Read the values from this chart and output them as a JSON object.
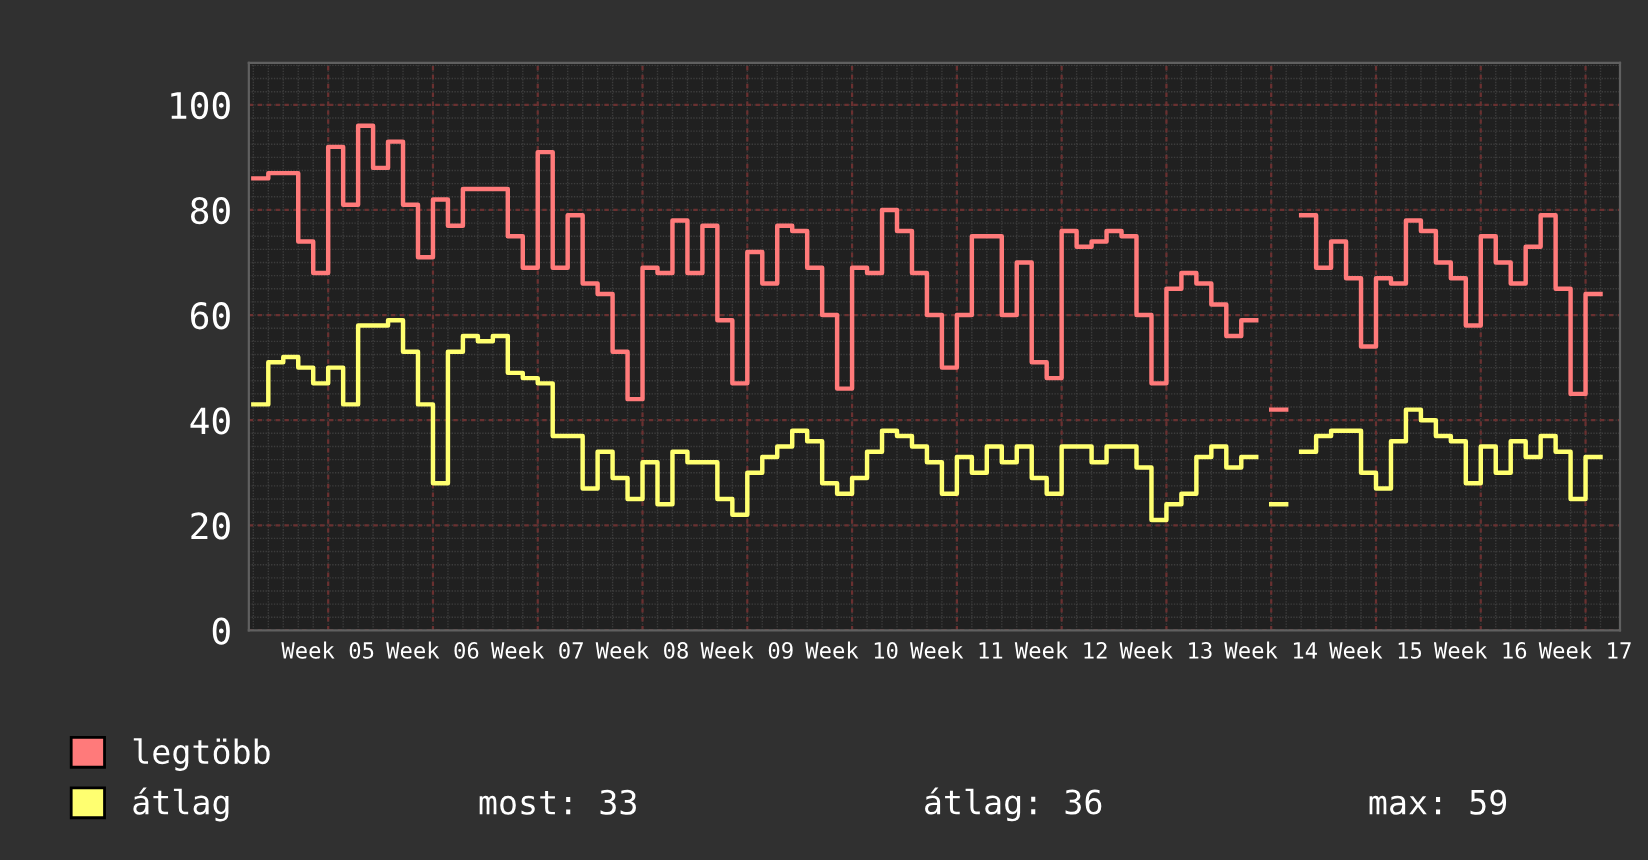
{
  "chart_data": {
    "type": "step",
    "categories": [
      null,
      null,
      null,
      null,
      null,
      "Week 05",
      null,
      null,
      null,
      null,
      null,
      null,
      "Week 06",
      null,
      null,
      null,
      null,
      null,
      null,
      "Week 07",
      null,
      null,
      null,
      null,
      null,
      null,
      "Week 08",
      null,
      null,
      null,
      null,
      null,
      null,
      "Week 09",
      null,
      null,
      null,
      null,
      null,
      null,
      "Week 10",
      null,
      null,
      null,
      null,
      null,
      null,
      "Week 11",
      null,
      null,
      null,
      null,
      null,
      null,
      "Week 12",
      null,
      null,
      null,
      null,
      null,
      null,
      "Week 13",
      null,
      null,
      null,
      null,
      null,
      null,
      "Week 14",
      null,
      null,
      null,
      null,
      null,
      null,
      "Week 15",
      null,
      null,
      null,
      null,
      null,
      null,
      "Week 16",
      null,
      null,
      null,
      null,
      null,
      null,
      "Week 17",
      null
    ],
    "series": [
      {
        "name": "legtöbb",
        "color": "#ff7a7a",
        "values": [
          86,
          87,
          87,
          74,
          68,
          92,
          81,
          96,
          88,
          93,
          81,
          71,
          82,
          77,
          84,
          84,
          84,
          75,
          69,
          91,
          69,
          79,
          66,
          64,
          53,
          44,
          69,
          68,
          78,
          68,
          77,
          59,
          47,
          72,
          66,
          77,
          76,
          69,
          60,
          46,
          69,
          68,
          80,
          76,
          68,
          60,
          50,
          60,
          75,
          75,
          60,
          70,
          51,
          48,
          76,
          73,
          74,
          76,
          75,
          60,
          47,
          65,
          68,
          66,
          62,
          56,
          59,
          null,
          42,
          null,
          79,
          69,
          74,
          67,
          54,
          67,
          66,
          78,
          76,
          70,
          67,
          58,
          75,
          70,
          66,
          73,
          79,
          65,
          45,
          64,
          64
        ]
      },
      {
        "name": "átlag",
        "color": "#ffff70",
        "values": [
          43,
          51,
          52,
          50,
          47,
          50,
          43,
          58,
          58,
          59,
          53,
          43,
          28,
          53,
          56,
          55,
          56,
          49,
          48,
          47,
          37,
          37,
          27,
          34,
          29,
          25,
          32,
          24,
          34,
          32,
          32,
          25,
          22,
          30,
          33,
          35,
          38,
          36,
          28,
          26,
          29,
          34,
          38,
          37,
          35,
          32,
          26,
          33,
          30,
          35,
          32,
          35,
          29,
          26,
          35,
          35,
          32,
          35,
          35,
          31,
          21,
          24,
          26,
          33,
          35,
          31,
          33,
          null,
          24,
          null,
          34,
          37,
          38,
          38,
          30,
          27,
          36,
          42,
          40,
          37,
          36,
          28,
          35,
          30,
          36,
          33,
          37,
          34,
          25,
          33,
          33
        ]
      }
    ],
    "ylim": [
      0,
      108
    ],
    "yticks": [
      0,
      20,
      40,
      60,
      80,
      100
    ],
    "grid": true,
    "legend": "bottom left",
    "annotations": [
      "most: 33",
      "átlag: 36",
      "max: 59"
    ]
  }
}
